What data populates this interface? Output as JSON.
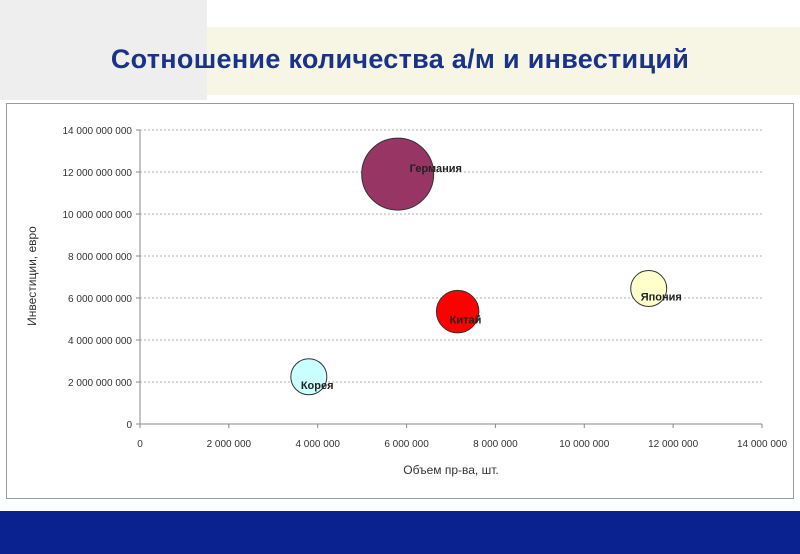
{
  "slide": {
    "title": "Сотношение количества а/м и инвестиций"
  },
  "colors": {
    "title": "#1a3288",
    "footer": "#0a2290",
    "grid": "#b0b0b0"
  },
  "chart_data": {
    "type": "bubble",
    "title": "",
    "xlabel": "Объем пр-ва, шт.",
    "ylabel": "Инвестиции, евро",
    "xlim": [
      0,
      14000000
    ],
    "ylim": [
      0,
      14000000000
    ],
    "xticks": [
      0,
      2000000,
      4000000,
      6000000,
      8000000,
      10000000,
      12000000,
      14000000
    ],
    "yticks": [
      0,
      2000000000,
      4000000000,
      6000000000,
      8000000000,
      10000000000,
      12000000000,
      14000000000
    ],
    "xtick_labels": [
      "0",
      "2 000 000",
      "4 000 000",
      "6 000 000",
      "8 000 000",
      "10 000 000",
      "12 000 000",
      "14 000 000"
    ],
    "ytick_labels": [
      "0",
      "2 000 000 000",
      "4 000 000 000",
      "6 000 000 000",
      "8 000 000 000",
      "10 000 000 000",
      "12 000 000 000",
      "14 000 000 000"
    ],
    "grid": true,
    "points": [
      {
        "label": "Германия",
        "x": 5800000,
        "y": 11900000000,
        "size": 1.0,
        "color": "#973565"
      },
      {
        "label": "Китай",
        "x": 7150000,
        "y": 5350000000,
        "size": 0.59,
        "color": "#ff0000"
      },
      {
        "label": "Япония",
        "x": 11450000,
        "y": 6450000000,
        "size": 0.5,
        "color": "#ffffcc"
      },
      {
        "label": "Корея",
        "x": 3800000,
        "y": 2250000000,
        "size": 0.5,
        "color": "#ccffff"
      }
    ]
  }
}
